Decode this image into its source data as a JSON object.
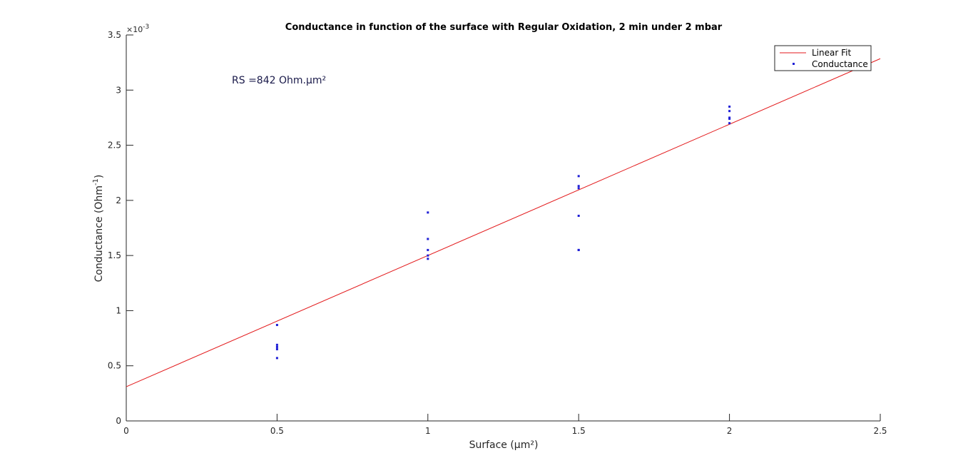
{
  "chart_data": {
    "type": "scatter",
    "title": "Conductance in function of the surface with Regular Oxidation, 2 min under 2 mbar",
    "xlabel": "Surface (µm²)",
    "ylabel": "Conductance (Ohm",
    "ylabel_sup": "-1",
    "ylabel_close": ")",
    "xlim": [
      0,
      2.5
    ],
    "ylim": [
      0,
      0.0035
    ],
    "x_ticks": [
      0,
      0.5,
      1,
      1.5,
      2,
      2.5
    ],
    "x_tick_labels": [
      "0",
      "0.5",
      "1",
      "1.5",
      "2",
      "2.5"
    ],
    "y_ticks": [
      0,
      0.0005,
      0.001,
      0.0015,
      0.002,
      0.0025,
      0.003,
      0.0035
    ],
    "y_tick_labels": [
      "0",
      "0.5",
      "1",
      "1.5",
      "2",
      "2.5",
      "3",
      "3.5"
    ],
    "y_exponent_base": "×10",
    "y_exponent_power": "-3",
    "grid": false,
    "legend_position": "top-right",
    "annotation": "RS =842 Ohm.µm²",
    "series": [
      {
        "name": "Linear Fit",
        "kind": "line",
        "color": "#e31a1c",
        "x": [
          0,
          2.5
        ],
        "y": [
          0.00031,
          0.003285
        ]
      },
      {
        "name": "Conductance",
        "kind": "scatter",
        "color": "#1f1fd6",
        "x": [
          0.5,
          0.5,
          0.5,
          0.5,
          0.5,
          1,
          1,
          1,
          1,
          1,
          1.5,
          1.5,
          1.5,
          1.5,
          1.5,
          1.5,
          2,
          2,
          2,
          2,
          2
        ],
        "y": [
          0.00087,
          0.00069,
          0.00067,
          0.00065,
          0.00057,
          0.00189,
          0.00165,
          0.00155,
          0.0015,
          0.00147,
          0.00222,
          0.00213,
          0.00211,
          0.00186,
          0.00155,
          0.00155,
          0.00285,
          0.00281,
          0.00274,
          0.0027,
          0.00275
        ]
      }
    ]
  }
}
